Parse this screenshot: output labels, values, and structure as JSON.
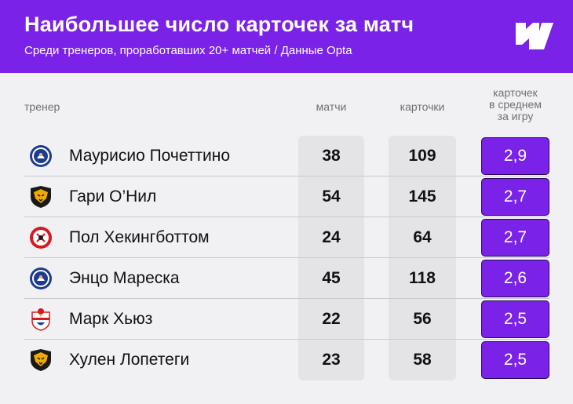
{
  "header": {
    "title": "Наибольшее число карточек за матч",
    "subtitle": "Среди тренеров, проработавших 20+ матчей / Данные Opta",
    "logo_icon": "brand-logo-icon",
    "background": "#7a22e8"
  },
  "columns": {
    "coach": "тренер",
    "matches": "матчи",
    "cards": "карточки",
    "avg_line1": "карточек",
    "avg_line2": "в среднем",
    "avg_line3": "за игру"
  },
  "accent_color": "#7a22e8",
  "rows": [
    {
      "club_icon": "chelsea-crest-icon",
      "name": "Маурисио Почеттино",
      "matches": "38",
      "cards": "109",
      "avg": "2,9"
    },
    {
      "club_icon": "wolves-crest-icon",
      "name": "Гари О’Нил",
      "matches": "54",
      "cards": "145",
      "avg": "2,7"
    },
    {
      "club_icon": "sheffield-united-crest-icon",
      "name": "Пол Хекингботтом",
      "matches": "24",
      "cards": "64",
      "avg": "2,7"
    },
    {
      "club_icon": "chelsea-crest-icon",
      "name": "Энцо Мареска",
      "matches": "45",
      "cards": "118",
      "avg": "2,6"
    },
    {
      "club_icon": "southampton-crest-icon",
      "name": "Марк Хьюз",
      "matches": "22",
      "cards": "56",
      "avg": "2,5"
    },
    {
      "club_icon": "wolves-crest-icon",
      "name": "Хулен Лопетеги",
      "matches": "23",
      "cards": "58",
      "avg": "2,5"
    }
  ]
}
